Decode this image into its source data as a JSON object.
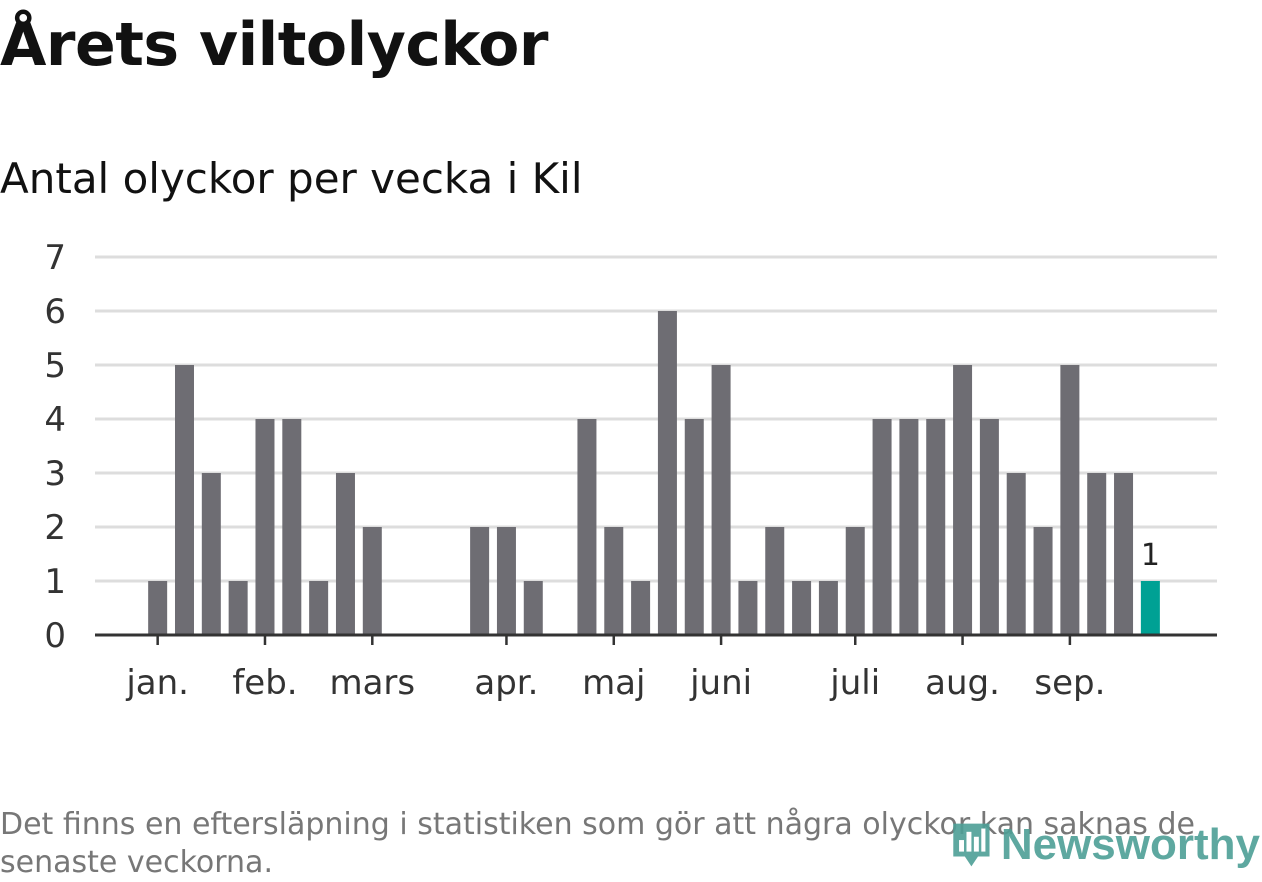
{
  "title": "Årets viltolyckor",
  "subtitle": "Antal olyckor per vecka i Kil",
  "footnote": "Det finns en eftersläpning i statistiken som gör att några olyckor kan saknas de senaste veckorna.",
  "logo": {
    "text": "Newsworthy",
    "icon": "bar-chart-pin-icon",
    "color": "#4d9f96"
  },
  "colors": {
    "bar": "#6e6d73",
    "highlight": "#00a194",
    "grid": "#dddddd",
    "axis": "#333333"
  },
  "chart_data": {
    "type": "bar",
    "title": "Antal olyckor per vecka i Kil",
    "xlabel": "",
    "ylabel": "",
    "ylim": [
      0,
      7
    ],
    "yticks": [
      "0",
      "1",
      "2",
      "3",
      "4",
      "5",
      "6",
      "7"
    ],
    "grid": true,
    "weeks": [
      1,
      2,
      3,
      4,
      5,
      6,
      7,
      8,
      9,
      10,
      11,
      12,
      13,
      14,
      15,
      16,
      17,
      18,
      19,
      20,
      21,
      22,
      23,
      24,
      25,
      26,
      27,
      28,
      29,
      30,
      31,
      32,
      33,
      34,
      35,
      36,
      37,
      38,
      39,
      40,
      41,
      42
    ],
    "values": [
      0,
      0,
      1,
      5,
      3,
      1,
      4,
      4,
      1,
      3,
      2,
      0,
      0,
      0,
      2,
      2,
      1,
      0,
      4,
      2,
      1,
      6,
      4,
      5,
      1,
      2,
      1,
      1,
      2,
      4,
      4,
      4,
      5,
      4,
      3,
      2,
      5,
      3,
      3,
      1,
      0,
      0
    ],
    "highlight_index": 39,
    "data_labels": [
      {
        "index": 39,
        "text": "1"
      }
    ],
    "month_ticks": [
      {
        "label": "jan.",
        "week": 3
      },
      {
        "label": "feb.",
        "week": 7
      },
      {
        "label": "mars",
        "week": 11
      },
      {
        "label": "apr.",
        "week": 16
      },
      {
        "label": "maj",
        "week": 20
      },
      {
        "label": "juni",
        "week": 24
      },
      {
        "label": "juli",
        "week": 29
      },
      {
        "label": "aug.",
        "week": 33
      },
      {
        "label": "sep.",
        "week": 37
      }
    ]
  }
}
